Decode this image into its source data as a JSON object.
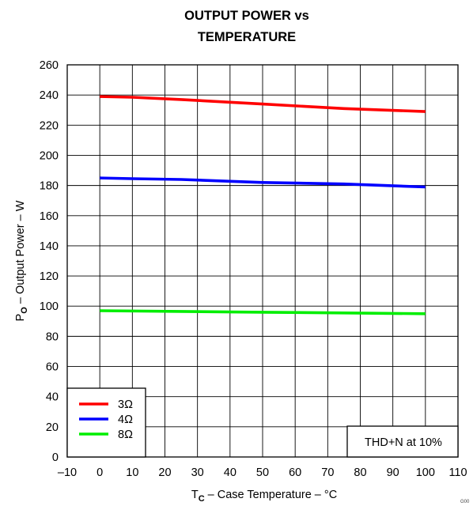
{
  "chart_data": {
    "type": "line",
    "title_line1": "OUTPUT POWER vs",
    "title_line2": "TEMPERATURE",
    "xlabel": {
      "main": "T",
      "sub": "C",
      "rest": " – Case Temperature – °C"
    },
    "ylabel": {
      "main": "P",
      "sub": "O",
      "rest": " – Output Power – W"
    },
    "xlim": [
      -10,
      110
    ],
    "ylim": [
      0,
      260
    ],
    "xticks": [
      -10,
      0,
      10,
      20,
      30,
      40,
      50,
      60,
      70,
      80,
      90,
      100,
      110
    ],
    "yticks": [
      0,
      20,
      40,
      60,
      80,
      100,
      120,
      140,
      160,
      180,
      200,
      220,
      240,
      260
    ],
    "grid": true,
    "legend_position": "bottom-left",
    "annotation": "THD+N at 10%",
    "figure_code": "G00",
    "series": [
      {
        "name": "3Ω",
        "color": "#ff0000",
        "x": [
          0,
          10,
          25,
          50,
          75,
          100
        ],
        "y": [
          239,
          238.5,
          237,
          234,
          231,
          229
        ]
      },
      {
        "name": "4Ω",
        "color": "#0000ff",
        "x": [
          0,
          10,
          25,
          50,
          75,
          100
        ],
        "y": [
          185,
          184.5,
          184,
          182,
          181,
          179
        ]
      },
      {
        "name": "8Ω",
        "color": "#00ee00",
        "x": [
          0,
          25,
          50,
          75,
          100
        ],
        "y": [
          97,
          96.5,
          96,
          95.5,
          95
        ]
      }
    ]
  }
}
